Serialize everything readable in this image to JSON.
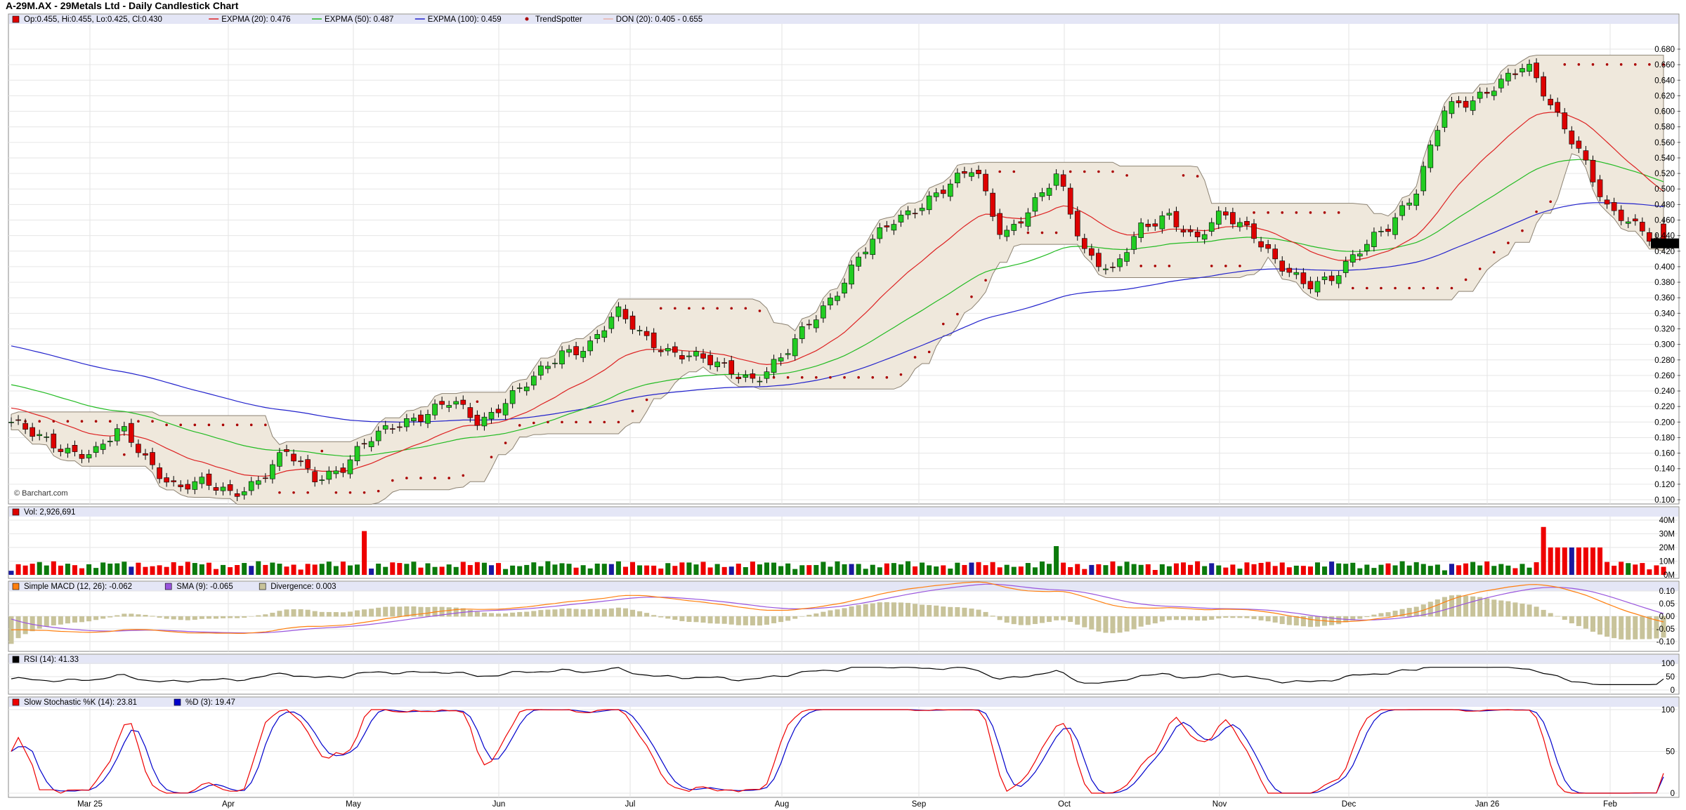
{
  "title": "A-29M.AX - 29Metals Ltd - Daily Candlestick Chart",
  "watermark": "© Barchart.com",
  "last_price_label": "0.430",
  "colors": {
    "up": "#22cc22",
    "down": "#dd0000",
    "expma20": "#dd2222",
    "expma50": "#22bb22",
    "expma100": "#2222cc",
    "trend": "#aa0000",
    "don_fill": "#efe8dc",
    "don_stroke": "#8c8272",
    "macd": "#ff7f0e",
    "sma": "#9955dd",
    "div": "#c8c39a",
    "rsi": "#000000",
    "stochK": "#ee0000",
    "stochD": "#0000cc",
    "vol_up": "#0b7a0b",
    "vol_down": "#ee0000",
    "vol_blue": "#1a1aa0"
  },
  "legends": {
    "price": [
      {
        "label": "Op:0.455, Hi:0.455, Lo:0.425, Cl:0.430",
        "color": "#dd0000",
        "kind": "box"
      },
      {
        "label": "EXPMA (20): 0.476",
        "color": "#dd2222",
        "kind": "line"
      },
      {
        "label": "EXPMA (50): 0.487",
        "color": "#22bb22",
        "kind": "line"
      },
      {
        "label": "EXPMA (100): 0.459",
        "color": "#2222cc",
        "kind": "line"
      },
      {
        "label": "TrendSpotter",
        "color": "#aa0000",
        "kind": "dot"
      },
      {
        "label": "DON (20): 0.405 - 0.655",
        "color": "#e8b0a8",
        "kind": "line"
      }
    ],
    "volume": [
      {
        "label": "Vol: 2,926,691",
        "color": "#dd0000",
        "kind": "box"
      }
    ],
    "macd": [
      {
        "label": "Simple MACD (12, 26): -0.062",
        "color": "#ff7f0e",
        "kind": "box"
      },
      {
        "label": "SMA (9): -0.065",
        "color": "#9955dd",
        "kind": "box"
      },
      {
        "label": "Divergence: 0.003",
        "color": "#c8c39a",
        "kind": "box"
      }
    ],
    "rsi": [
      {
        "label": "RSI (14): 41.33",
        "color": "#000000",
        "kind": "box"
      }
    ],
    "stoch": [
      {
        "label": "Slow Stochastic %K (14): 23.81",
        "color": "#ee0000",
        "kind": "box"
      },
      {
        "label": "%D (3): 19.47",
        "color": "#0000cc",
        "kind": "box"
      }
    ]
  },
  "axes": {
    "price_ticks": [
      "0.100",
      "0.120",
      "0.140",
      "0.160",
      "0.180",
      "0.200",
      "0.220",
      "0.240",
      "0.260",
      "0.280",
      "0.300",
      "0.320",
      "0.340",
      "0.360",
      "0.380",
      "0.400",
      "0.420",
      "0.440",
      "0.460",
      "0.480",
      "0.500",
      "0.520",
      "0.540",
      "0.560",
      "0.580",
      "0.600",
      "0.620",
      "0.640",
      "0.660",
      "0.680"
    ],
    "volume_ticks": [
      "0M",
      "10M",
      "20M",
      "30M",
      "40M"
    ],
    "macd_ticks": [
      "-0.10",
      "-0.05",
      "0.00",
      "0.05",
      "0.10"
    ],
    "rsi_ticks": [
      "0",
      "50",
      "100"
    ],
    "stoch_ticks": [
      "0",
      "50",
      "100"
    ],
    "x_labels": [
      "Mar 25",
      "Apr",
      "May",
      "Jun",
      "Jul",
      "Aug",
      "Sep",
      "Oct",
      "Nov",
      "Dec",
      "Jan 26",
      "Feb"
    ]
  },
  "chart_data": [
    {
      "type": "candlestick",
      "title": "A-29M.AX - 29Metals Ltd - Daily Candlestick Chart",
      "ylim": [
        0.1,
        0.69
      ],
      "x_months": [
        "Mar 25",
        "Apr",
        "May",
        "Jun",
        "Jul",
        "Aug",
        "Sep",
        "Oct",
        "Nov",
        "Dec",
        "Jan 26",
        "Feb"
      ],
      "monthly_close_trace": [
        0.2,
        0.178,
        0.165,
        0.16,
        0.19,
        0.15,
        0.115,
        0.12,
        0.11,
        0.125,
        0.16,
        0.13,
        0.14,
        0.175,
        0.2,
        0.21,
        0.225,
        0.2,
        0.23,
        0.255,
        0.29,
        0.3,
        0.34,
        0.31,
        0.29,
        0.28,
        0.27,
        0.255,
        0.28,
        0.33,
        0.37,
        0.42,
        0.46,
        0.48,
        0.5,
        0.53,
        0.44,
        0.47,
        0.52,
        0.42,
        0.39,
        0.45,
        0.47,
        0.43,
        0.47,
        0.45,
        0.4,
        0.375,
        0.39,
        0.42,
        0.45,
        0.5,
        0.6,
        0.61,
        0.64,
        0.66,
        0.6,
        0.55,
        0.47,
        0.45,
        0.43
      ],
      "last": {
        "open": 0.455,
        "high": 0.455,
        "low": 0.425,
        "close": 0.43
      },
      "series": [
        {
          "name": "EXPMA (20)",
          "last": 0.476
        },
        {
          "name": "EXPMA (50)",
          "last": 0.487
        },
        {
          "name": "EXPMA (100)",
          "last": 0.459
        },
        {
          "name": "DON (20)",
          "low": 0.405,
          "high": 0.655
        }
      ]
    },
    {
      "type": "bar",
      "name": "Vol",
      "last": 2926691,
      "ylim": [
        0,
        40000000
      ],
      "spikes_M": [
        {
          "month": "May",
          "value": 32
        },
        {
          "month": "Oct",
          "value": 21
        },
        {
          "month": "Jan 26",
          "value": 35
        }
      ]
    },
    {
      "type": "line",
      "name": "Simple MACD (12, 26)",
      "last": -0.062,
      "sma_last": -0.065,
      "divergence_last": 0.003,
      "ylim": [
        -0.1,
        0.1
      ]
    },
    {
      "type": "line",
      "name": "RSI (14)",
      "last": 41.33,
      "ylim": [
        0,
        100
      ]
    },
    {
      "type": "line",
      "name": "Slow Stochastic",
      "k_last": 23.81,
      "d_last": 19.47,
      "ylim": [
        0,
        100
      ]
    }
  ]
}
